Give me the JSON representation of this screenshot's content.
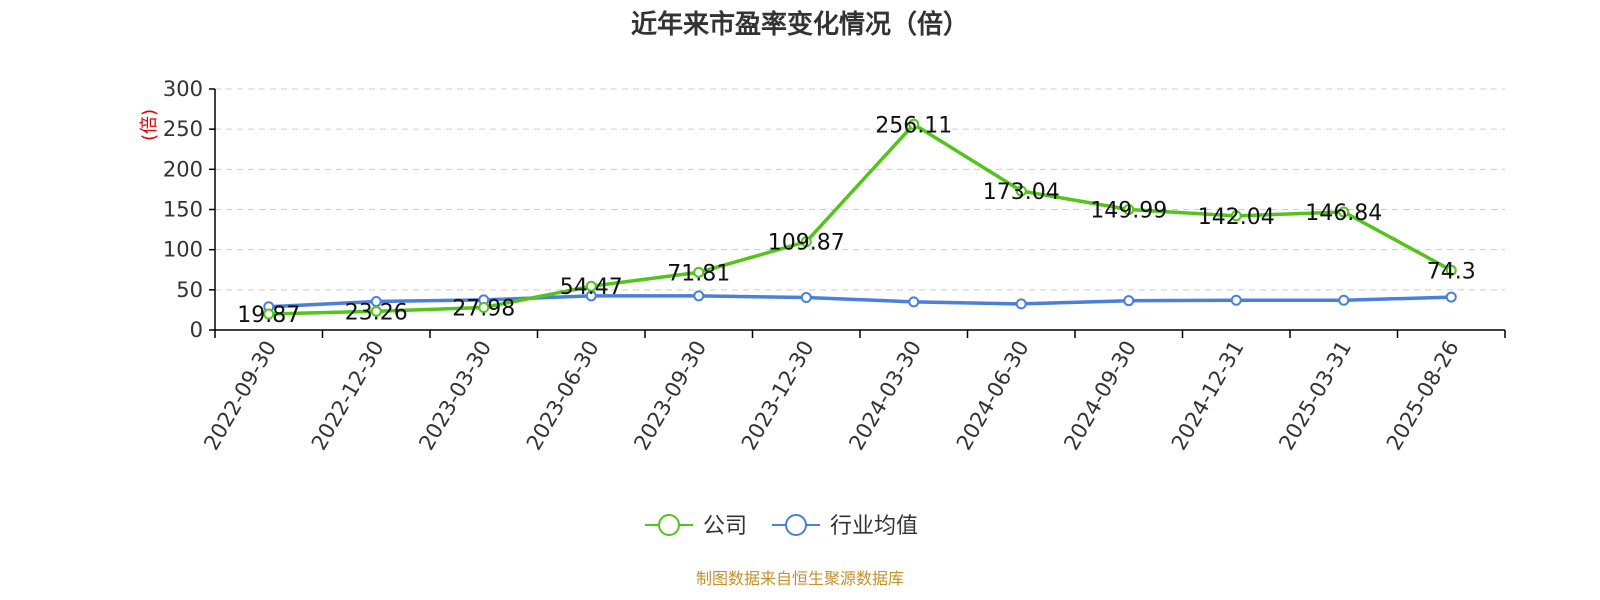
{
  "chart_data": {
    "type": "line",
    "title": "近年来市盈率变化情况（倍）",
    "xlabel": "",
    "ylabel": "(倍)",
    "ylim": [
      0,
      300
    ],
    "yticks": [
      0,
      50,
      100,
      150,
      200,
      250,
      300
    ],
    "grid": true,
    "legend_position": "bottom-center",
    "categories": [
      "2022-09-30",
      "2022-12-30",
      "2023-03-30",
      "2023-06-30",
      "2023-09-30",
      "2023-12-30",
      "2024-03-30",
      "2024-06-30",
      "2024-09-30",
      "2024-12-31",
      "2025-03-31",
      "2025-08-26"
    ],
    "series": [
      {
        "name": "公司",
        "color": "#52c41a",
        "values": [
          19.87,
          23.26,
          27.98,
          54.47,
          71.81,
          109.87,
          256.11,
          173.04,
          149.99,
          142.04,
          146.84,
          74.3
        ],
        "labels": [
          "19.87",
          "23.26",
          "27.98",
          "54.47",
          "71.81",
          "109.87",
          "256.11",
          "173.04",
          "149.99",
          "142.04",
          "146.84",
          "74.3"
        ]
      },
      {
        "name": "行业均值",
        "color": "#4a7fdb",
        "values": [
          29.0,
          35.5,
          37.5,
          42.5,
          42.5,
          40.5,
          35.0,
          32.5,
          36.5,
          37.0,
          37.0,
          41.0
        ]
      }
    ]
  },
  "source": {
    "text": "制图数据来自恒生聚源数据库",
    "color": "#c8902a"
  }
}
